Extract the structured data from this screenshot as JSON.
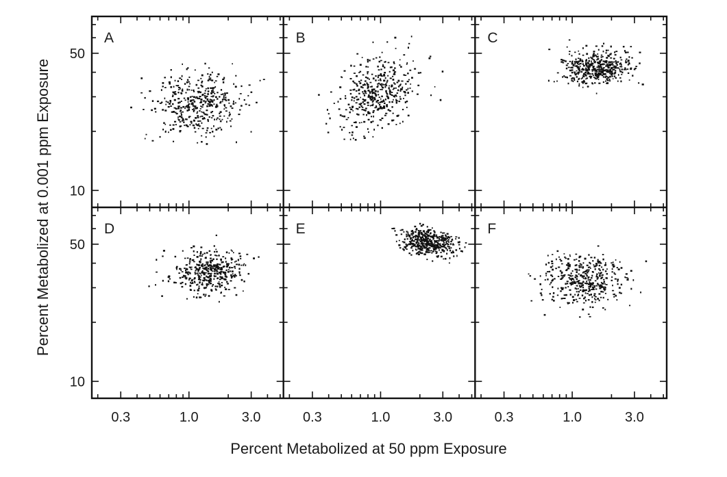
{
  "chart_data": {
    "type": "scatter",
    "xscale": "log",
    "yscale": "log",
    "xlim": [
      0.18,
      5.3
    ],
    "ylim": [
      8.2,
      77
    ],
    "xlabel": "Percent Metabolized at 50 ppm Exposure",
    "ylabel": "Percent Metabolized at 0.001 ppm Exposure",
    "x_ticks": [
      0.3,
      1.0,
      3.0
    ],
    "x_tick_labels": [
      "0.3",
      "1.0",
      "3.0"
    ],
    "x_minor_ticks": [
      0.2,
      0.4,
      0.5,
      0.6,
      0.7,
      0.8,
      0.9,
      2.0,
      4.0,
      5.0
    ],
    "y_ticks": [
      10,
      50
    ],
    "y_tick_labels": [
      "10",
      "50"
    ],
    "y_minor_ticks": [
      20,
      30,
      40,
      60,
      70
    ],
    "grid": false,
    "legend": "none",
    "layout": "2x3 panel grid, shared axes",
    "point_color": "#111111",
    "panels": [
      {
        "label": "A",
        "n_points": 420,
        "x_center": 1.15,
        "y_center": 27.5,
        "x_sd_log10": 0.175,
        "y_sd_log10": 0.08,
        "trend": 0.1
      },
      {
        "label": "B",
        "n_points": 430,
        "x_center": 0.95,
        "y_center": 31.0,
        "x_sd_log10": 0.155,
        "y_sd_log10": 0.095,
        "trend": 0.4
      },
      {
        "label": "C",
        "n_points": 450,
        "x_center": 1.55,
        "y_center": 42.0,
        "x_sd_log10": 0.135,
        "y_sd_log10": 0.045,
        "trend": 0.05
      },
      {
        "label": "D",
        "n_points": 420,
        "x_center": 1.45,
        "y_center": 36.0,
        "x_sd_log10": 0.135,
        "y_sd_log10": 0.055,
        "trend": 0.1
      },
      {
        "label": "E",
        "n_points": 460,
        "x_center": 2.35,
        "y_center": 51.0,
        "x_sd_log10": 0.1,
        "y_sd_log10": 0.035,
        "trend": -0.2
      },
      {
        "label": "F",
        "n_points": 420,
        "x_center": 1.25,
        "y_center": 33.0,
        "x_sd_log10": 0.16,
        "y_sd_log10": 0.07,
        "trend": -0.1
      }
    ]
  }
}
